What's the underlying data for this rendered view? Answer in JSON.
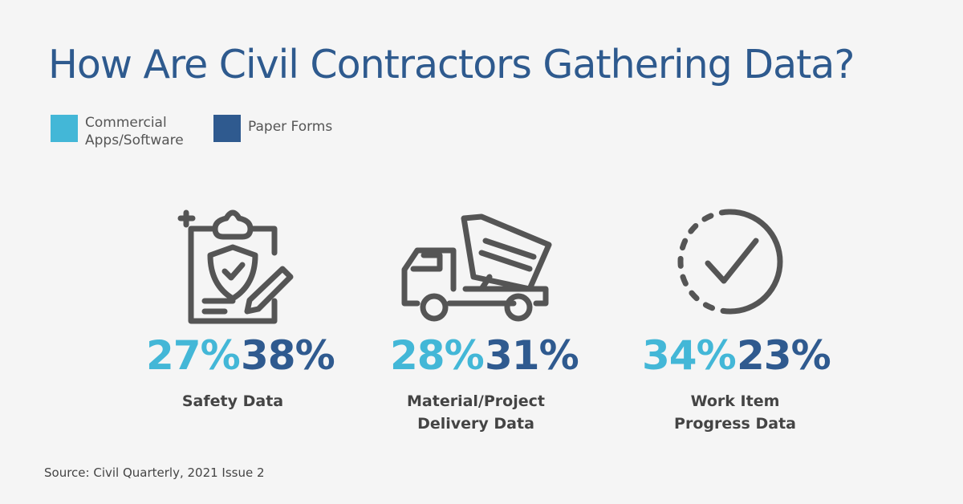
{
  "header": {
    "title": "How Are Civil Contractors Gathering Data?"
  },
  "legend": [
    {
      "lines": [
        "Commercial",
        "Apps/Software"
      ]
    },
    {
      "lines": [
        "Paper Forms"
      ]
    }
  ],
  "groups": [
    {
      "apps": "27%",
      "paper": "38%",
      "label": [
        "Safety Data"
      ]
    },
    {
      "apps": "28%",
      "paper": "31%",
      "label": [
        "Material/Project",
        "Delivery Data"
      ]
    },
    {
      "apps": "34%",
      "paper": "23%",
      "label": [
        "Work Item",
        "Progress Data"
      ]
    }
  ],
  "footer": {
    "source": "Source: Civil Quarterly, 2021 Issue 2"
  }
}
